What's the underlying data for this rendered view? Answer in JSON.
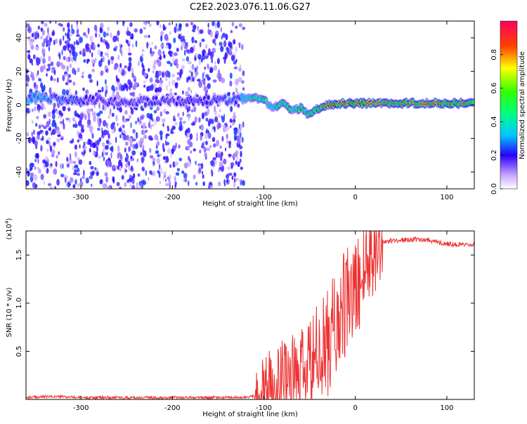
{
  "title": "C2E2.2023.076.11.06.G27",
  "chart_data": [
    {
      "type": "heatmap",
      "name": "spectrogram",
      "xlabel": "Height of straight line (km)",
      "ylabel": "Frequency (Hz)",
      "xlim": [
        -360,
        130
      ],
      "ylim": [
        -50,
        50
      ],
      "xticks": [
        -300,
        -200,
        -100,
        0,
        100
      ],
      "yticks": [
        -40,
        -20,
        0,
        20,
        40
      ],
      "colorbar": {
        "label": "Normalized spectral amplitude",
        "range": [
          0,
          1
        ],
        "ticks": [
          0.0,
          0.2,
          0.4,
          0.6,
          0.8
        ],
        "tick_labels": [
          "0.0",
          "0.2",
          "0.4",
          "0.6",
          "0.8"
        ]
      },
      "noise_region": {
        "x_from": -360,
        "x_to": -122,
        "y_from": -50,
        "y_to": 50,
        "amplitude": [
          0.05,
          0.25
        ]
      },
      "signal_trace": [
        {
          "x": -340,
          "y": 4,
          "a": 0.3
        },
        {
          "x": -300,
          "y": 3,
          "a": 0.2
        },
        {
          "x": -250,
          "y": 2,
          "a": 0.2
        },
        {
          "x": -200,
          "y": 2,
          "a": 0.2
        },
        {
          "x": -130,
          "y": 3,
          "a": 0.25
        },
        {
          "x": -110,
          "y": 4,
          "a": 0.45
        },
        {
          "x": -100,
          "y": 3,
          "a": 0.45
        },
        {
          "x": -90,
          "y": -2,
          "a": 0.4
        },
        {
          "x": -80,
          "y": 1,
          "a": 0.45
        },
        {
          "x": -70,
          "y": -3,
          "a": 0.45
        },
        {
          "x": -60,
          "y": -2,
          "a": 0.5
        },
        {
          "x": -50,
          "y": -6,
          "a": 0.45
        },
        {
          "x": -40,
          "y": -2,
          "a": 0.55
        },
        {
          "x": -30,
          "y": 0,
          "a": 0.6
        },
        {
          "x": -15,
          "y": 1,
          "a": 0.65
        },
        {
          "x": 0,
          "y": 1,
          "a": 0.7
        },
        {
          "x": 20,
          "y": 1,
          "a": 0.65
        },
        {
          "x": 50,
          "y": 1,
          "a": 0.6
        },
        {
          "x": 75,
          "y": 1,
          "a": 0.7
        },
        {
          "x": 100,
          "y": 1,
          "a": 0.6
        },
        {
          "x": 130,
          "y": 1,
          "a": 0.6
        }
      ]
    },
    {
      "type": "line",
      "name": "snr",
      "xlabel": "Height of straight line (km)",
      "ylabel": "SNR (10 * v/v)",
      "y_multiplier": "(x10",
      "y_multiplier_exp": "4",
      "y_multiplier_close": ")",
      "xlim": [
        -360,
        130
      ],
      "ylim": [
        0,
        1.75
      ],
      "xticks": [
        -300,
        -200,
        -100,
        0,
        100
      ],
      "yticks": [
        0.5,
        1.0,
        1.5
      ],
      "ytick_labels": [
        "0.5",
        "1.0",
        "1.5"
      ],
      "color": "#ee3333",
      "series": [
        {
          "name": "SNR envelope",
          "x": [
            -360,
            -330,
            -300,
            -250,
            -200,
            -150,
            -120,
            -110,
            -100,
            -95,
            -90,
            -85,
            -80,
            -75,
            -70,
            -65,
            -60,
            -55,
            -50,
            -45,
            -40,
            -35,
            -30,
            -25,
            -20,
            -15,
            -10,
            -5,
            0,
            5,
            10,
            15,
            20,
            25,
            30,
            40,
            60,
            80,
            95,
            100,
            110,
            120,
            130
          ],
          "y": [
            0.02,
            0.03,
            0.02,
            0.02,
            0.02,
            0.02,
            0.02,
            0.04,
            0.08,
            0.12,
            0.15,
            0.18,
            0.22,
            0.3,
            0.25,
            0.2,
            0.25,
            0.3,
            0.28,
            0.4,
            0.45,
            0.5,
            0.6,
            0.7,
            0.8,
            0.9,
            1.0,
            1.05,
            1.12,
            1.25,
            1.4,
            1.52,
            1.58,
            1.62,
            1.64,
            1.65,
            1.66,
            1.66,
            1.62,
            1.62,
            1.61,
            1.6,
            1.6
          ]
        }
      ]
    }
  ]
}
